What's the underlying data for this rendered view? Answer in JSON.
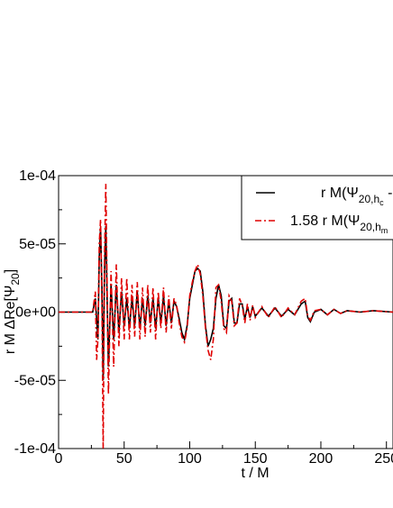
{
  "chart_data": {
    "type": "line",
    "title": "",
    "xlabel": "t / M",
    "ylabel": "r M ΔRe[Ψ",
    "ylabel_sub": "20",
    "ylabel_close": "]",
    "xlim": [
      0,
      255
    ],
    "ylim": [
      -0.0001,
      0.0001
    ],
    "x_ticks": [
      {
        "value": 0,
        "label": "0"
      },
      {
        "value": 50,
        "label": "50"
      },
      {
        "value": 100,
        "label": "100"
      },
      {
        "value": 150,
        "label": "150"
      },
      {
        "value": 200,
        "label": "200"
      },
      {
        "value": 250,
        "label": "250"
      }
    ],
    "y_ticks": [
      {
        "value": -0.0001,
        "label": "-1e-04"
      },
      {
        "value": -5e-05,
        "label": "-5e-05"
      },
      {
        "value": 0,
        "label": "0e+00"
      },
      {
        "value": 5e-05,
        "label": "5e-05"
      },
      {
        "value": 0.0001,
        "label": "1e-04"
      }
    ],
    "grid": false,
    "legend_position": "top-right",
    "series": [
      {
        "name": "r M(Ψ",
        "legend_sub": "20,h",
        "legend_subsub": "c",
        "legend_tail": " -",
        "color": "#000000",
        "dash": "solid",
        "points": [
          [
            0,
            0
          ],
          [
            26,
            0
          ],
          [
            28,
            1e-05
          ],
          [
            30,
            -2e-05
          ],
          [
            31,
            4e-05
          ],
          [
            32,
            6.2e-05
          ],
          [
            33,
            2e-05
          ],
          [
            34,
            -5e-05
          ],
          [
            35,
            3e-05
          ],
          [
            36,
            6.3e-05
          ],
          [
            37,
            1e-05
          ],
          [
            38,
            -4e-05
          ],
          [
            40,
            2e-05
          ],
          [
            42,
            -2e-05
          ],
          [
            44,
            2e-05
          ],
          [
            46,
            -1.5e-05
          ],
          [
            48,
            1.5e-05
          ],
          [
            50,
            -1e-05
          ],
          [
            52,
            1e-05
          ],
          [
            54,
            -1.2e-05
          ],
          [
            56,
            1e-05
          ],
          [
            58,
            -1e-05
          ],
          [
            60,
            1.5e-05
          ],
          [
            62,
            -1.2e-05
          ],
          [
            64,
            1e-05
          ],
          [
            66,
            -1e-05
          ],
          [
            68,
            1.2e-05
          ],
          [
            70,
            -8e-06
          ],
          [
            72,
            1e-05
          ],
          [
            74,
            -1.2e-05
          ],
          [
            76,
            1e-05
          ],
          [
            78,
            -8e-06
          ],
          [
            80,
            1.2e-05
          ],
          [
            82,
            -1e-05
          ],
          [
            84,
            8e-06
          ],
          [
            86,
            -8e-06
          ],
          [
            88,
            8e-06
          ],
          [
            90,
            4e-06
          ],
          [
            92,
            -5e-06
          ],
          [
            94,
            -1.5e-05
          ],
          [
            96,
            -2e-05
          ],
          [
            98,
            -1e-05
          ],
          [
            100,
            1e-05
          ],
          [
            102,
            2e-05
          ],
          [
            104,
            3e-05
          ],
          [
            106,
            3.2e-05
          ],
          [
            108,
            3e-05
          ],
          [
            110,
            1.5e-05
          ],
          [
            112,
            -1e-05
          ],
          [
            114,
            -2.5e-05
          ],
          [
            116,
            -2e-05
          ],
          [
            118,
            -1.2e-05
          ],
          [
            120,
            1e-05
          ],
          [
            122,
            2e-05
          ],
          [
            124,
            1.2e-05
          ],
          [
            126,
            -1e-05
          ],
          [
            128,
            -1.2e-05
          ],
          [
            130,
            8e-06
          ],
          [
            132,
            1e-05
          ],
          [
            134,
            -8e-06
          ],
          [
            136,
            -8e-06
          ],
          [
            138,
            6e-06
          ],
          [
            140,
            6e-06
          ],
          [
            142,
            -5e-06
          ],
          [
            144,
            4e-06
          ],
          [
            146,
            -4e-06
          ],
          [
            148,
            4e-06
          ],
          [
            150,
            -3e-06
          ],
          [
            155,
            3e-06
          ],
          [
            160,
            -3e-06
          ],
          [
            165,
            3e-06
          ],
          [
            170,
            -3e-06
          ],
          [
            175,
            2e-06
          ],
          [
            180,
            -2e-06
          ],
          [
            185,
            6e-06
          ],
          [
            188,
            8e-06
          ],
          [
            190,
            -4e-06
          ],
          [
            192,
            -7e-06
          ],
          [
            195,
            0
          ],
          [
            200,
            2e-06
          ],
          [
            205,
            -2e-06
          ],
          [
            210,
            2e-06
          ],
          [
            215,
            -1e-06
          ],
          [
            220,
            1e-06
          ],
          [
            230,
            0
          ],
          [
            240,
            1e-06
          ],
          [
            255,
            0
          ]
        ]
      },
      {
        "name": "1.58 r M(Ψ",
        "legend_sub": "20,h",
        "legend_subsub": "m",
        "legend_tail": "",
        "color": "#e00000",
        "dash": "dash-dot",
        "points": [
          [
            0,
            0
          ],
          [
            26,
            0
          ],
          [
            28,
            1.5e-05
          ],
          [
            29,
            -3.5e-05
          ],
          [
            30,
            -2e-05
          ],
          [
            31,
            5e-05
          ],
          [
            32,
            6.8e-05
          ],
          [
            33,
            1e-05
          ],
          [
            34,
            -0.0001
          ],
          [
            35,
            4e-05
          ],
          [
            36,
            9.4e-05
          ],
          [
            37,
            2e-05
          ],
          [
            38,
            -6e-05
          ],
          [
            40,
            3e-05
          ],
          [
            42,
            -4e-05
          ],
          [
            44,
            3.5e-05
          ],
          [
            46,
            -2.5e-05
          ],
          [
            48,
            2.5e-05
          ],
          [
            50,
            -2e-05
          ],
          [
            52,
            2.5e-05
          ],
          [
            54,
            -2e-05
          ],
          [
            56,
            2e-05
          ],
          [
            58,
            -1.8e-05
          ],
          [
            60,
            2.2e-05
          ],
          [
            62,
            -2e-05
          ],
          [
            64,
            1.8e-05
          ],
          [
            66,
            -1.8e-05
          ],
          [
            68,
            2e-05
          ],
          [
            70,
            -1.5e-05
          ],
          [
            72,
            1.8e-05
          ],
          [
            74,
            -2e-05
          ],
          [
            76,
            1.5e-05
          ],
          [
            78,
            -1.2e-05
          ],
          [
            80,
            1.8e-05
          ],
          [
            82,
            -1.5e-05
          ],
          [
            84,
            1.2e-05
          ],
          [
            86,
            -1.2e-05
          ],
          [
            88,
            1e-05
          ],
          [
            90,
            5e-06
          ],
          [
            92,
            -8e-06
          ],
          [
            94,
            -1.8e-05
          ],
          [
            96,
            -2.2e-05
          ],
          [
            98,
            -1.2e-05
          ],
          [
            100,
            1.2e-05
          ],
          [
            102,
            2.2e-05
          ],
          [
            104,
            3e-05
          ],
          [
            106,
            3.5e-05
          ],
          [
            108,
            2.8e-05
          ],
          [
            110,
            1.2e-05
          ],
          [
            112,
            -1.2e-05
          ],
          [
            114,
            -2.8e-05
          ],
          [
            116,
            -3.5e-05
          ],
          [
            118,
            -2e-05
          ],
          [
            120,
            1.8e-05
          ],
          [
            122,
            2e-05
          ],
          [
            124,
            8e-06
          ],
          [
            126,
            -1.2e-05
          ],
          [
            128,
            -1.5e-05
          ],
          [
            130,
            1.2e-05
          ],
          [
            132,
            8e-06
          ],
          [
            134,
            -1e-05
          ],
          [
            136,
            -8e-06
          ],
          [
            138,
            1e-05
          ],
          [
            140,
            5e-06
          ],
          [
            142,
            -8e-06
          ],
          [
            144,
            6e-06
          ],
          [
            146,
            -6e-06
          ],
          [
            148,
            5e-06
          ],
          [
            150,
            -4e-06
          ],
          [
            155,
            4e-06
          ],
          [
            160,
            -4e-06
          ],
          [
            165,
            4e-06
          ],
          [
            170,
            -4e-06
          ],
          [
            175,
            3e-06
          ],
          [
            180,
            -2e-06
          ],
          [
            185,
            8e-06
          ],
          [
            188,
            1e-05
          ],
          [
            190,
            -3e-06
          ],
          [
            192,
            -6e-06
          ],
          [
            195,
            1e-06
          ],
          [
            200,
            2e-06
          ],
          [
            205,
            -2e-06
          ],
          [
            210,
            2e-06
          ],
          [
            215,
            -1e-06
          ],
          [
            220,
            1e-06
          ],
          [
            230,
            0
          ],
          [
            240,
            1e-06
          ],
          [
            255,
            0
          ]
        ]
      }
    ]
  }
}
